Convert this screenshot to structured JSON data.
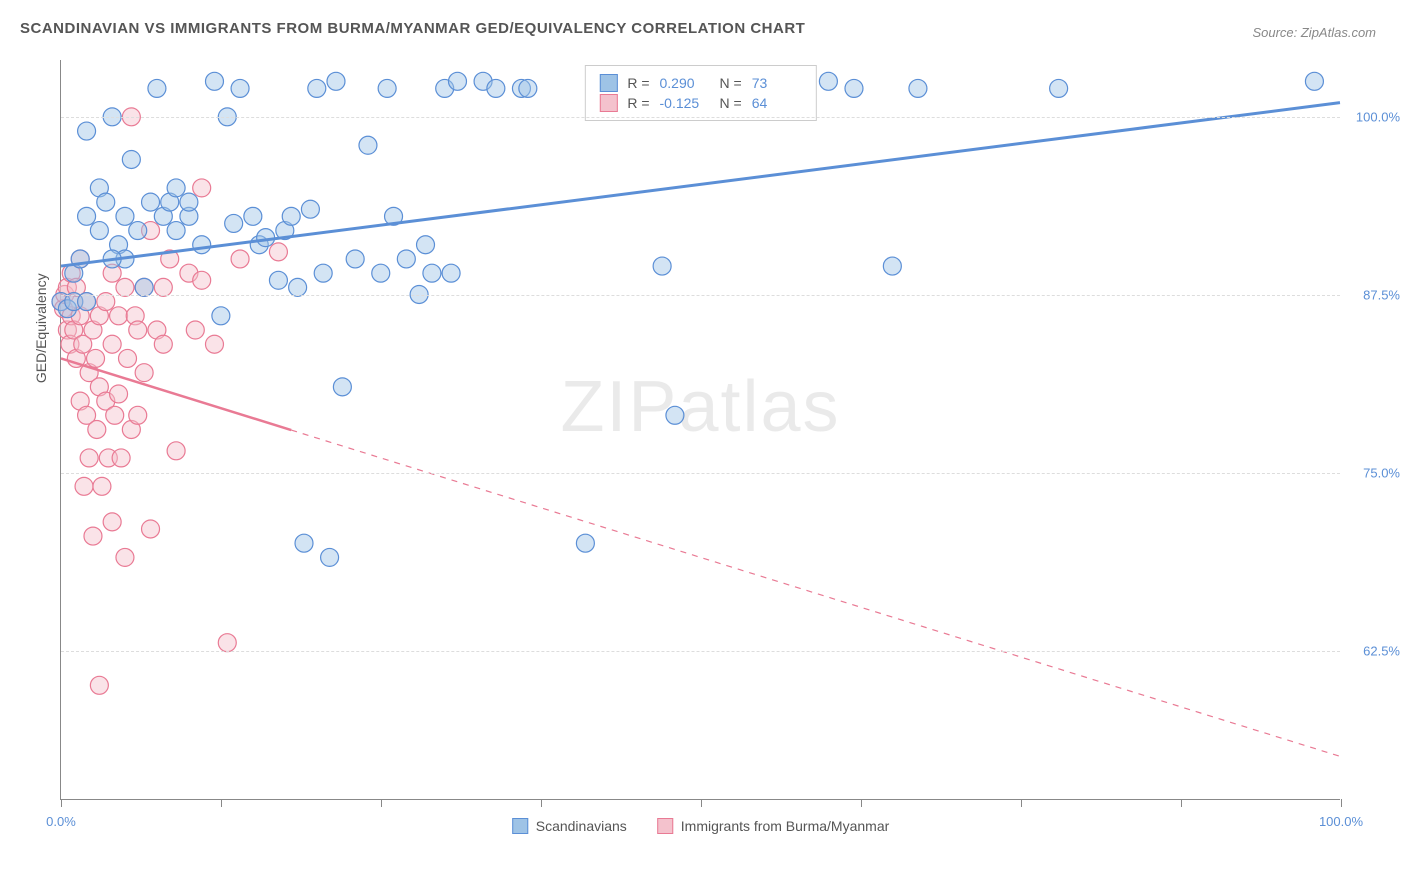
{
  "title": "SCANDINAVIAN VS IMMIGRANTS FROM BURMA/MYANMAR GED/EQUIVALENCY CORRELATION CHART",
  "source": "Source: ZipAtlas.com",
  "watermark": "ZIPatlas",
  "y_axis_label": "GED/Equivalency",
  "chart": {
    "type": "scatter",
    "xlim": [
      0,
      100
    ],
    "ylim": [
      52,
      104
    ],
    "x_ticks": [
      0,
      12.5,
      25,
      37.5,
      50,
      62.5,
      75,
      87.5,
      100
    ],
    "x_tick_labels": {
      "0": "0.0%",
      "100": "100.0%"
    },
    "y_ticks": [
      62.5,
      75,
      87.5,
      100
    ],
    "y_tick_labels": {
      "62.5": "62.5%",
      "75": "75.0%",
      "87.5": "87.5%",
      "100": "100.0%"
    },
    "background_color": "#ffffff",
    "grid_color": "#dddddd",
    "marker_radius": 9,
    "marker_opacity": 0.45,
    "marker_stroke_width": 1.2
  },
  "series": {
    "scandinavians": {
      "label": "Scandinavians",
      "color_fill": "#9ec3e6",
      "color_stroke": "#5b8fd6",
      "R": "0.290",
      "N": "73",
      "trend": {
        "x1": 0,
        "y1": 89.5,
        "x2": 100,
        "y2": 101,
        "solid_until_x": 100,
        "stroke_width": 3
      },
      "points": [
        [
          0,
          87
        ],
        [
          0.5,
          86.5
        ],
        [
          1,
          87
        ],
        [
          1,
          89
        ],
        [
          1.5,
          90
        ],
        [
          2,
          93
        ],
        [
          2,
          99
        ],
        [
          3,
          92
        ],
        [
          3,
          95
        ],
        [
          3.5,
          94
        ],
        [
          4,
          100
        ],
        [
          4.5,
          91
        ],
        [
          5,
          90
        ],
        [
          5,
          93
        ],
        [
          5.5,
          97
        ],
        [
          6,
          92
        ],
        [
          6.5,
          88
        ],
        [
          7,
          94
        ],
        [
          7.5,
          102
        ],
        [
          8,
          93
        ],
        [
          8.5,
          94
        ],
        [
          9,
          95
        ],
        [
          9,
          92
        ],
        [
          10,
          93
        ],
        [
          10,
          94
        ],
        [
          11,
          91
        ],
        [
          12,
          102.5
        ],
        [
          12.5,
          86
        ],
        [
          13,
          100
        ],
        [
          13.5,
          92.5
        ],
        [
          14,
          102
        ],
        [
          15,
          93
        ],
        [
          15.5,
          91
        ],
        [
          16,
          91.5
        ],
        [
          17,
          88.5
        ],
        [
          17.5,
          92
        ],
        [
          18,
          93
        ],
        [
          18.5,
          88
        ],
        [
          19,
          70
        ],
        [
          19.5,
          93.5
        ],
        [
          20,
          102
        ],
        [
          20.5,
          89
        ],
        [
          21,
          69
        ],
        [
          21.5,
          102.5
        ],
        [
          22,
          81
        ],
        [
          23,
          90
        ],
        [
          24,
          98
        ],
        [
          25,
          89
        ],
        [
          25.5,
          102
        ],
        [
          26,
          93
        ],
        [
          27,
          90
        ],
        [
          28,
          87.5
        ],
        [
          28.5,
          91
        ],
        [
          29,
          89
        ],
        [
          30,
          102
        ],
        [
          30.5,
          89
        ],
        [
          31,
          102.5
        ],
        [
          33,
          102.5
        ],
        [
          34,
          102
        ],
        [
          36,
          102
        ],
        [
          36.5,
          102
        ],
        [
          41,
          70
        ],
        [
          47,
          89.5
        ],
        [
          48,
          79
        ],
        [
          55,
          102
        ],
        [
          60,
          102.5
        ],
        [
          62,
          102
        ],
        [
          65,
          89.5
        ],
        [
          67,
          102
        ],
        [
          78,
          102
        ],
        [
          98,
          102.5
        ],
        [
          2,
          87
        ],
        [
          4,
          90
        ]
      ]
    },
    "burma": {
      "label": "Immigrants from Burma/Myanmar",
      "color_fill": "#f4c2cd",
      "color_stroke": "#e97a94",
      "R": "-0.125",
      "N": "64",
      "trend": {
        "x1": 0,
        "y1": 83,
        "x2": 100,
        "y2": 55,
        "solid_until_x": 18,
        "stroke_width": 2.5
      },
      "points": [
        [
          0,
          87
        ],
        [
          0.2,
          86.5
        ],
        [
          0.3,
          87.5
        ],
        [
          0.5,
          85
        ],
        [
          0.5,
          88
        ],
        [
          0.7,
          84
        ],
        [
          0.8,
          86
        ],
        [
          0.8,
          89
        ],
        [
          1,
          87
        ],
        [
          1,
          85
        ],
        [
          1.2,
          83
        ],
        [
          1.2,
          88
        ],
        [
          1.5,
          80
        ],
        [
          1.5,
          86
        ],
        [
          1.5,
          90
        ],
        [
          1.7,
          84
        ],
        [
          1.8,
          74
        ],
        [
          2,
          87
        ],
        [
          2,
          79
        ],
        [
          2.2,
          82
        ],
        [
          2.2,
          76
        ],
        [
          2.5,
          85
        ],
        [
          2.5,
          70.5
        ],
        [
          2.7,
          83
        ],
        [
          2.8,
          78
        ],
        [
          3,
          86
        ],
        [
          3,
          81
        ],
        [
          3,
          60
        ],
        [
          3.2,
          74
        ],
        [
          3.5,
          87
        ],
        [
          3.5,
          80
        ],
        [
          3.7,
          76
        ],
        [
          4,
          89
        ],
        [
          4,
          84
        ],
        [
          4,
          71.5
        ],
        [
          4.2,
          79
        ],
        [
          4.5,
          86
        ],
        [
          4.5,
          80.5
        ],
        [
          4.7,
          76
        ],
        [
          5,
          88
        ],
        [
          5,
          69
        ],
        [
          5.2,
          83
        ],
        [
          5.5,
          100
        ],
        [
          5.5,
          78
        ],
        [
          5.8,
          86
        ],
        [
          6,
          85
        ],
        [
          6,
          79
        ],
        [
          6.5,
          88
        ],
        [
          6.5,
          82
        ],
        [
          7,
          92
        ],
        [
          7,
          71
        ],
        [
          7.5,
          85
        ],
        [
          8,
          88
        ],
        [
          8,
          84
        ],
        [
          8.5,
          90
        ],
        [
          9,
          76.5
        ],
        [
          10,
          89
        ],
        [
          10.5,
          85
        ],
        [
          11,
          95
        ],
        [
          11,
          88.5
        ],
        [
          12,
          84
        ],
        [
          13,
          63
        ],
        [
          14,
          90
        ],
        [
          17,
          90.5
        ]
      ]
    }
  },
  "legend_bottom": [
    {
      "key": "scandinavians"
    },
    {
      "key": "burma"
    }
  ],
  "stats_box_order": [
    "scandinavians",
    "burma"
  ]
}
